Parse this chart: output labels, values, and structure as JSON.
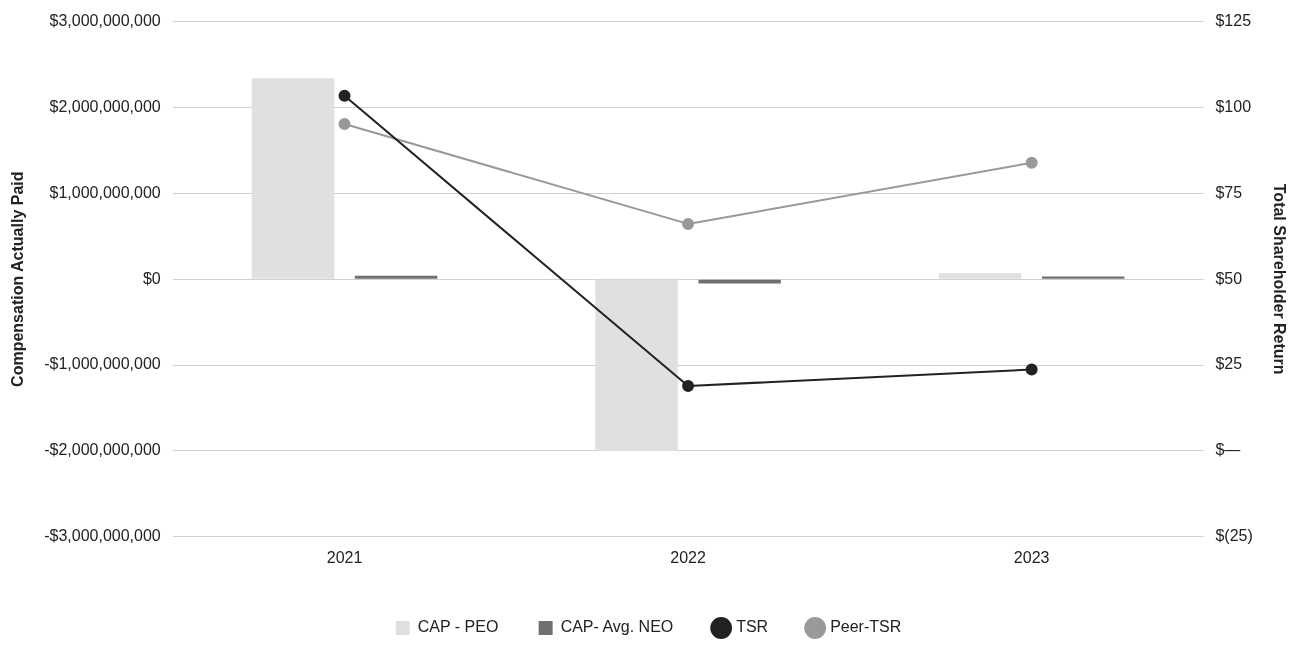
{
  "chart_data": {
    "type": "bar",
    "ylabel": "Compensation Actually Paid",
    "y2label": "Total Shareholder Return",
    "categories": [
      "2021",
      "2022",
      "2023"
    ],
    "series": [
      {
        "name": "CAP - PEO",
        "color": "#e0e0e0",
        "values": [
          2340000000,
          -2000000000,
          70000000
        ]
      },
      {
        "name": "CAP- Avg. NEO",
        "color": "#707070",
        "values": [
          40000000,
          -50000000,
          30000000
        ]
      },
      {
        "name": "TSR",
        "type": "line",
        "axis": "y2",
        "color": "#222222",
        "values": [
          103.4,
          18.9,
          23.7
        ]
      },
      {
        "name": "Peer-TSR",
        "type": "line",
        "axis": "y2",
        "color": "#999999",
        "values": [
          95.2,
          66.1,
          83.9
        ]
      }
    ],
    "ylim": [
      -3000000000,
      3000000000
    ],
    "yticks": [
      {
        "value": -3000000000,
        "label": "-$3,000,000,000"
      },
      {
        "value": -2000000000,
        "label": "-$2,000,000,000"
      },
      {
        "value": -1000000000,
        "label": "-$1,000,000,000"
      },
      {
        "value": 0,
        "label": "$0"
      },
      {
        "value": 1000000000,
        "label": "$1,000,000,000"
      },
      {
        "value": 2000000000,
        "label": "$2,000,000,000"
      },
      {
        "value": 3000000000,
        "label": "$3,000,000,000"
      }
    ],
    "y2lim": [
      -25,
      125
    ],
    "y2ticks": [
      {
        "value": -25,
        "label": "$(25)"
      },
      {
        "value": 0,
        "label": "$—"
      },
      {
        "value": 25,
        "label": "$25"
      },
      {
        "value": 50,
        "label": "$50"
      },
      {
        "value": 75,
        "label": "$75"
      },
      {
        "value": 100,
        "label": "$100"
      },
      {
        "value": 125,
        "label": "$125"
      }
    ],
    "grid": "y",
    "legend": "bottom",
    "marker": "circle",
    "line_style": "solid"
  }
}
